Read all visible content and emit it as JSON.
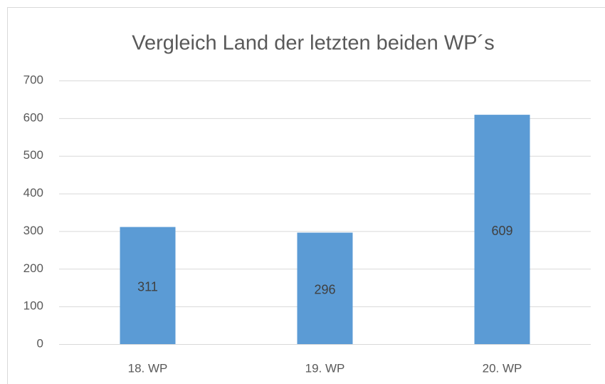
{
  "chart_data": {
    "type": "bar",
    "title": "Vergleich Land der letzten beiden WP´s",
    "categories": [
      "18. WP",
      "19. WP",
      "20. WP"
    ],
    "values": [
      311,
      296,
      609
    ],
    "color": "#5b9bd5",
    "ylim": [
      0,
      700
    ],
    "yticks": [
      0,
      100,
      200,
      300,
      400,
      500,
      600,
      700
    ],
    "grid": true,
    "data_labels": true
  }
}
